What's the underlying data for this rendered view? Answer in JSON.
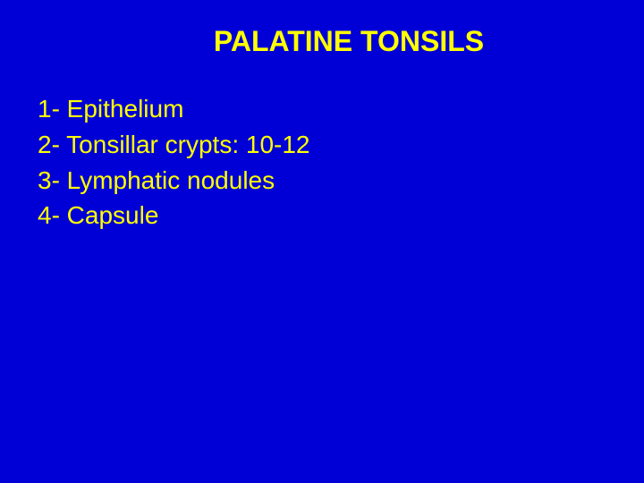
{
  "slide": {
    "background_color": "#0000d6",
    "text_color": "#ffff00",
    "title": {
      "text": "PALATINE TONSILS",
      "font_size": 32,
      "font_weight": "bold"
    },
    "items": [
      "1- Epithelium",
      "2- Tonsillar crypts: 10-12",
      "3- Lymphatic nodules",
      "4- Capsule"
    ],
    "item_font_size": 28,
    "line_height": 1.35
  }
}
